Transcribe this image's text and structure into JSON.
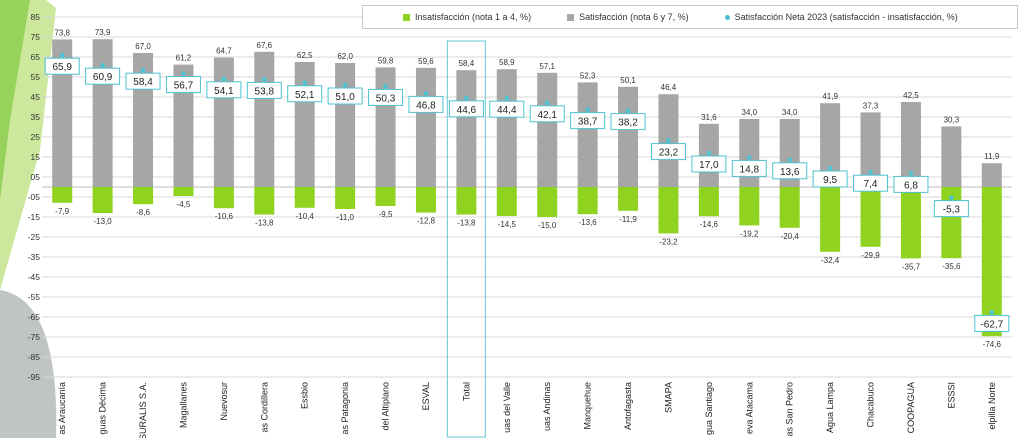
{
  "colors": {
    "insatisfaccion": "#8fd320",
    "satisfaccion": "#a6a6a6",
    "neta": "#4cc3d0",
    "highlight_border": "#7fd0dc",
    "grid": "#d9d9d9",
    "decor_green": "#a3d64a",
    "decor_gray": "#8e9396"
  },
  "legend": {
    "insatisfaccion": "Insatisfacción (nota 1 a 4, %)",
    "satisfaccion": "Satisfacción (nota 6 y 7, %)",
    "neta": "Satisfacción Neta 2023 (satisfacción - insatisfacción, %)"
  },
  "chart_data": {
    "type": "bar",
    "ylim": [
      -95,
      85
    ],
    "yticks": [
      "85",
      "75",
      "65",
      "55",
      "45",
      "35",
      "25",
      "15",
      "05",
      "-05",
      "-15",
      "-25",
      "-35",
      "-45",
      "-55",
      "-65",
      "-75",
      "-85",
      "-95"
    ],
    "grid": true,
    "legend_position": "top-right",
    "highlight_category": "Total",
    "categories": [
      "as Araucanía",
      "guas Décima",
      "SURALIS S.A.",
      "Magallanes",
      "Nuevosur",
      "as Cordillera",
      "Essbio",
      "as Patagonia",
      "del Altiplano",
      "ESVAL",
      "Total",
      "uas del Valle",
      "uas Andinas",
      "Manquehue",
      "Antofagasta",
      "SMAPA",
      "gua Santiago",
      "eva Atacama",
      "as San Pedro",
      "Agua Lampa",
      "Chacabuco",
      "COOPAGUA",
      "ESSSI",
      "elpilla Norte"
    ],
    "series": [
      {
        "name": "Satisfacción (nota 6 y 7, %)",
        "values": [
          73.8,
          73.9,
          67.0,
          61.2,
          64.7,
          67.6,
          62.5,
          62.0,
          59.8,
          59.6,
          58.4,
          58.9,
          57.1,
          52.3,
          50.1,
          46.4,
          31.6,
          34.0,
          34.0,
          41.9,
          37.3,
          42.5,
          30.3,
          11.9
        ]
      },
      {
        "name": "Insatisfacción (nota 1 a 4, %)",
        "values": [
          -7.9,
          -13.0,
          -8.6,
          -4.5,
          -10.6,
          -13.8,
          -10.4,
          -11.0,
          -9.5,
          -12.8,
          -13.8,
          -14.5,
          -15.0,
          -13.6,
          -11.9,
          -23.2,
          -14.6,
          -19.2,
          -20.4,
          -32.4,
          -29.9,
          -35.7,
          -35.6,
          -74.6
        ]
      },
      {
        "name": "Satisfacción Neta 2023 (satisfacción - insatisfacción, %)",
        "values": [
          65.9,
          60.9,
          58.4,
          56.7,
          54.1,
          53.8,
          52.1,
          51.0,
          50.3,
          46.8,
          44.6,
          44.4,
          42.1,
          38.7,
          38.2,
          23.2,
          17.0,
          14.8,
          13.6,
          9.5,
          7.4,
          6.8,
          -5.3,
          -62.7
        ]
      }
    ],
    "labels": {
      "satisfaccion": [
        "73,8",
        "73,9",
        "67,0",
        "61,2",
        "64,7",
        "67,6",
        "62,5",
        "62,0",
        "59,8",
        "59,6",
        "58,4",
        "58,9",
        "57,1",
        "52,3",
        "50,1",
        "46,4",
        "31,6",
        "34,0",
        "34,0",
        "41,9",
        "37,3",
        "42,5",
        "30,3",
        "11,9"
      ],
      "insatisfaccion": [
        "-7,9",
        "-13,0",
        "-8,6",
        "-4,5",
        "-10,6",
        "-13,8",
        "-10,4",
        "-11,0",
        "-9,5",
        "-12,8",
        "-13,8",
        "-14,5",
        "-15,0",
        "-13,6",
        "-11,9",
        "-23,2",
        "-14,6",
        "-19,2",
        "-20,4",
        "-32,4",
        "-29,9",
        "-35,7",
        "-35,6",
        "-74,6"
      ],
      "neta": [
        "65,9",
        "60,9",
        "58,4",
        "56,7",
        "54,1",
        "53,8",
        "52,1",
        "51,0",
        "50,3",
        "46,8",
        "44,6",
        "44,4",
        "42,1",
        "38,7",
        "38,2",
        "23,2",
        "17,0",
        "14,8",
        "13,6",
        "9,5",
        "7,4",
        "6,8",
        "-5,3",
        "-62,7"
      ]
    }
  }
}
